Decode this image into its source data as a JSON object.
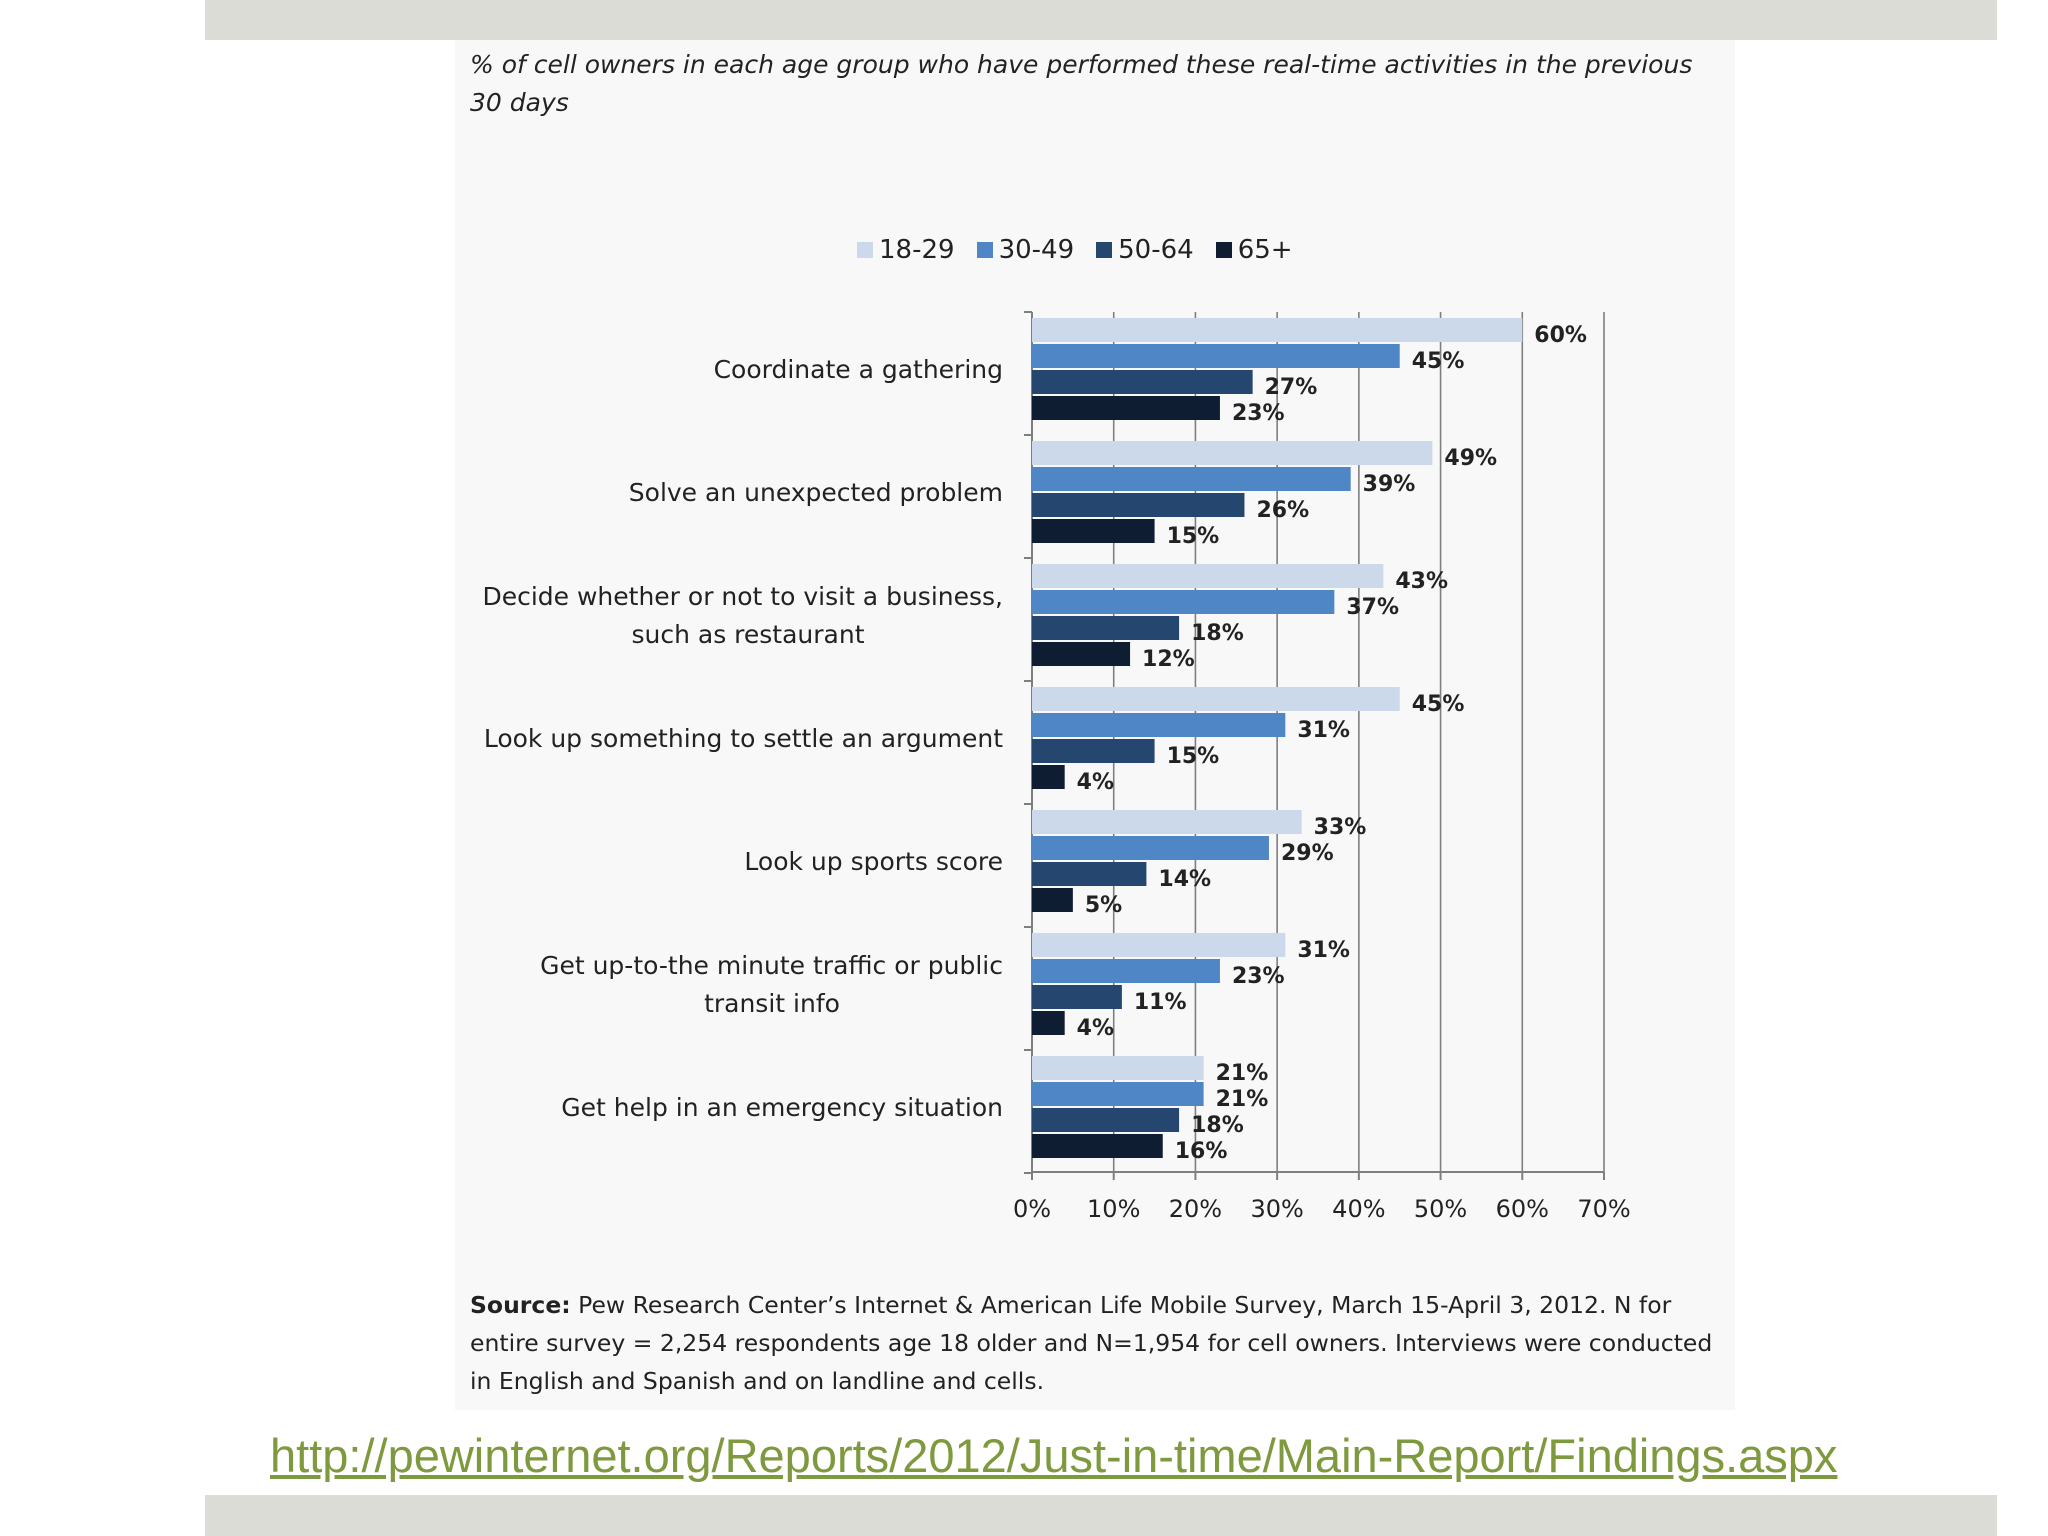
{
  "subtitle": "% of cell owners in each age group who have performed these real-time activities in the previous 30 days",
  "colors": {
    "series": [
      "#cbd9ea",
      "#4f86c6",
      "#24466f",
      "#0f1d33"
    ],
    "gridline": "#7f7f7f",
    "link": "#7f9a3e",
    "band": "#dcdcd6"
  },
  "chart_data": {
    "type": "bar",
    "orientation": "horizontal",
    "categories": [
      "Coordinate a gathering",
      "Solve an unexpected problem",
      "Decide whether or not to visit a business, such as restaurant",
      "Look up something to settle an argument",
      "Look up sports score",
      "Get up-to-the minute traffic or public transit info",
      "Get help in an emergency situation"
    ],
    "category_lines": [
      [
        "Coordinate a gathering"
      ],
      [
        "Solve an unexpected problem"
      ],
      [
        "Decide whether or not to visit a business,",
        "such as restaurant"
      ],
      [
        "Look up something to settle an argument"
      ],
      [
        "Look up sports score"
      ],
      [
        "Get up-to-the minute traffic or public",
        "transit info"
      ],
      [
        "Get help in an emergency situation"
      ]
    ],
    "series": [
      {
        "name": "18-29",
        "values": [
          60,
          49,
          43,
          45,
          33,
          31,
          21
        ]
      },
      {
        "name": "30-49",
        "values": [
          45,
          39,
          37,
          31,
          29,
          23,
          21
        ]
      },
      {
        "name": "50-64",
        "values": [
          27,
          26,
          18,
          15,
          14,
          11,
          18
        ]
      },
      {
        "name": "65+",
        "values": [
          23,
          15,
          12,
          4,
          5,
          4,
          16
        ]
      }
    ],
    "xlim": [
      0,
      70
    ],
    "ticks": [
      "0%",
      "10%",
      "20%",
      "30%",
      "40%",
      "50%",
      "60%",
      "70%"
    ],
    "value_suffix": "%",
    "grid": true,
    "legend_position": "top"
  },
  "source": {
    "label": "Source:",
    "text": " Pew Research Center’s Internet & American Life Mobile Survey, March 15-April 3, 2012. N for entire survey = 2,254 respondents age 18 older and N=1,954 for cell owners. Interviews were conducted in English and Spanish and on landline and cells."
  },
  "link": {
    "text": "http://pewinternet.org/Reports/2012/Just-in-time/Main-Report/Findings.aspx"
  }
}
